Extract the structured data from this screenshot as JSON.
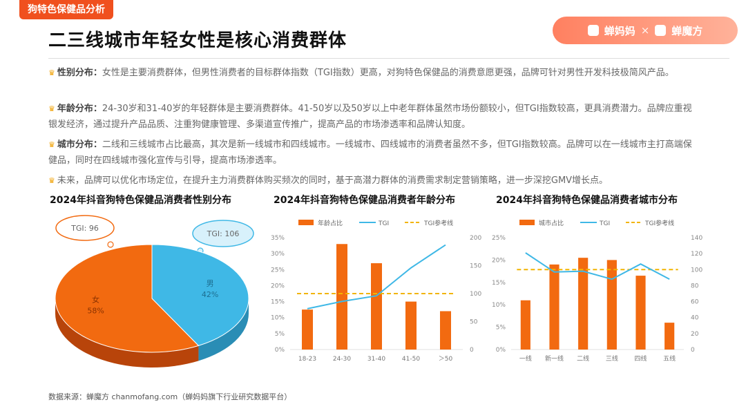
{
  "tag": "狗特色保健品分析",
  "brand": {
    "left": "蝉妈妈",
    "sep": "×",
    "right": "蝉魔方"
  },
  "title": "二三线城市年轻女性是核心消费群体",
  "points": [
    {
      "label": "性别分布：",
      "text": "女性是主要消费群体，但男性消费者的目标群体指数（TGI指数）更高，对狗特色保健品的消费意愿更强，品牌可针对男性开发科技极简风产品。"
    },
    {
      "label": "年龄分布：",
      "text": "24-30岁和31-40岁的年轻群体是主要消费群体。41-50岁以及50岁以上中老年群体虽然市场份额较小，但TGI指数较高，更具消费潜力。品牌应重视银发经济，通过提升产品品质、注重狗健康管理、多渠道宣传推广，提高产品的市场渗透率和品牌认知度。"
    },
    {
      "label": "城市分布：",
      "text": "二线和三线城市占比最高，其次是新一线城市和四线城市。一线城市、四线城市的消费者虽然不多，但TGI指数较高。品牌可以在一线城市主打高端保健品，同时在四线城市强化宣传与引导，提高市场渗透率。"
    },
    {
      "label": "",
      "text": "未来，品牌可以优化市场定位，在提升主力消费群体购买频次的同时，基于高潜力群体的消费需求制定营销策略，进一步深挖GMV增长点。"
    }
  ],
  "source": "数据来源：蝉魔方 chanmofang.com（蝉妈妈旗下行业研究数据平台）",
  "colors": {
    "orange": "#f26a10",
    "blue": "#3fb8e6",
    "ref": "#f2b400"
  },
  "chart_data": [
    {
      "type": "pie",
      "title": "2024年抖音狗特色保健品消费者性别分布",
      "slices": [
        {
          "name": "女",
          "value": 58,
          "label": "58%",
          "tgi": "TGI: 96"
        },
        {
          "name": "男",
          "value": 42,
          "label": "42%",
          "tgi": "TGI: 106"
        }
      ]
    },
    {
      "type": "bar",
      "title": "2024年抖音狗特色保健品消费者年龄分布",
      "categories": [
        "18-23",
        "24-30",
        "31-40",
        "41-50",
        "＞50"
      ],
      "series": [
        {
          "name": "年龄占比",
          "values": [
            12.5,
            33,
            27,
            15,
            12
          ]
        },
        {
          "name": "TGI",
          "values": [
            73,
            86,
            96,
            146,
            187
          ]
        },
        {
          "name": "TGI参考线",
          "values": [
            100,
            100,
            100,
            100,
            100
          ]
        }
      ],
      "ylim": [
        0,
        35
      ],
      "yticks": [
        "0%",
        "5%",
        "10%",
        "15%",
        "20%",
        "25%",
        "30%",
        "35%"
      ],
      "y2lim": [
        0,
        200
      ],
      "y2ticks": [
        "0",
        "50",
        "100",
        "150",
        "200"
      ]
    },
    {
      "type": "bar",
      "title": "2024年抖音狗特色保健品消费者城市分布",
      "categories": [
        "一线",
        "新一线",
        "二线",
        "三线",
        "四线",
        "五线"
      ],
      "series": [
        {
          "name": "城市占比",
          "values": [
            11,
            19,
            20.5,
            20,
            16.5,
            6
          ]
        },
        {
          "name": "TGI",
          "values": [
            121,
            97,
            98,
            88,
            107,
            88
          ]
        },
        {
          "name": "TGI参考线",
          "values": [
            100,
            100,
            100,
            100,
            100,
            100
          ]
        }
      ],
      "ylim": [
        0,
        25
      ],
      "yticks": [
        "0%",
        "5%",
        "10%",
        "15%",
        "20%",
        "25%"
      ],
      "y2lim": [
        0,
        140
      ],
      "y2ticks": [
        "0",
        "20",
        "40",
        "60",
        "80",
        "100",
        "120",
        "140"
      ]
    }
  ]
}
